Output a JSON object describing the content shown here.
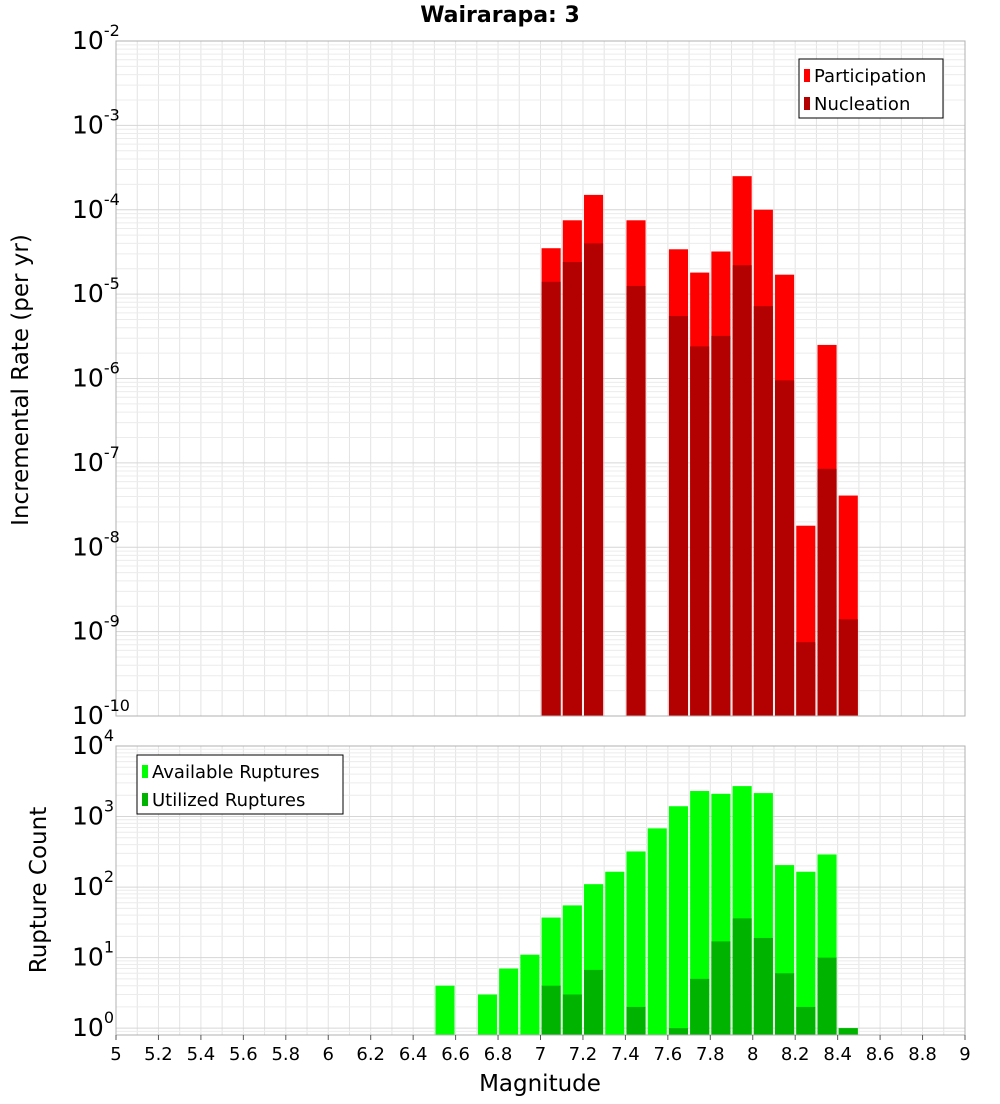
{
  "chart_data": [
    {
      "type": "bar",
      "title": "Wairarapa: 3",
      "xlabel": "",
      "ylabel": "Incremental Rate (per yr)",
      "xlim": [
        5,
        9
      ],
      "ylim": [
        1e-10,
        0.01
      ],
      "yscale": "log",
      "y_tick_exponents": [
        "-10",
        "-9",
        "-8",
        "-7",
        "-6",
        "-5",
        "-4",
        "-3",
        "-2"
      ],
      "y_tick_base": "10",
      "grid": true,
      "legend": "top-right",
      "bar_width": 0.09,
      "series": [
        {
          "name": "Participation",
          "color": "#ff0000",
          "x": [
            7.05,
            7.15,
            7.25,
            7.45,
            7.65,
            7.75,
            7.85,
            7.95,
            8.05,
            8.15,
            8.25,
            8.35,
            8.45
          ],
          "values": [
            3.5e-05,
            7.5e-05,
            0.00015,
            7.5e-05,
            3.4e-05,
            1.8e-05,
            3.2e-05,
            0.00025,
            0.0001,
            1.7e-05,
            1.8e-08,
            2.5e-06,
            4.1e-08
          ]
        },
        {
          "name": "Nucleation",
          "color": "#b30000",
          "x": [
            7.05,
            7.15,
            7.25,
            7.45,
            7.65,
            7.75,
            7.85,
            7.95,
            8.05,
            8.15,
            8.25,
            8.35,
            8.45
          ],
          "values": [
            1.4e-05,
            2.4e-05,
            4e-05,
            1.25e-05,
            5.5e-06,
            2.4e-06,
            3.2e-06,
            2.2e-05,
            7.2e-06,
            9.5e-07,
            7.5e-10,
            8.5e-08,
            1.4e-09
          ]
        }
      ]
    },
    {
      "type": "bar",
      "title": "",
      "xlabel": "Magnitude",
      "ylabel": "Rupture Count",
      "xlim": [
        5,
        9
      ],
      "ylim": [
        0.8,
        10000
      ],
      "yscale": "log",
      "y_tick_exponents": [
        "0",
        "1",
        "2",
        "3",
        "4"
      ],
      "y_tick_base": "10",
      "x_ticks": [
        "5",
        "5.2",
        "5.4",
        "5.6",
        "5.8",
        "6",
        "6.2",
        "6.4",
        "6.6",
        "6.8",
        "7",
        "7.2",
        "7.4",
        "7.6",
        "7.8",
        "8",
        "8.2",
        "8.4",
        "8.6",
        "8.8",
        "9"
      ],
      "grid": true,
      "legend": "top-left",
      "bar_width": 0.09,
      "series": [
        {
          "name": "Available Ruptures",
          "color": "#00ff00",
          "x": [
            6.55,
            6.75,
            6.85,
            6.95,
            7.05,
            7.15,
            7.25,
            7.35,
            7.45,
            7.55,
            7.65,
            7.75,
            7.85,
            7.95,
            8.05,
            8.15,
            8.25,
            8.35,
            8.45
          ],
          "values": [
            4,
            3,
            7,
            11,
            37,
            55,
            110,
            165,
            320,
            680,
            1400,
            2300,
            2100,
            2700,
            2150,
            205,
            165,
            290,
            1
          ]
        },
        {
          "name": "Utilized Ruptures",
          "color": "#00b300",
          "x": [
            7.05,
            7.15,
            7.25,
            7.45,
            7.65,
            7.75,
            7.85,
            7.95,
            8.05,
            8.15,
            8.25,
            8.35,
            8.45
          ],
          "values": [
            4,
            3,
            6.7,
            2,
            1,
            5,
            17,
            36,
            19,
            6,
            2,
            10,
            1
          ]
        }
      ]
    }
  ]
}
